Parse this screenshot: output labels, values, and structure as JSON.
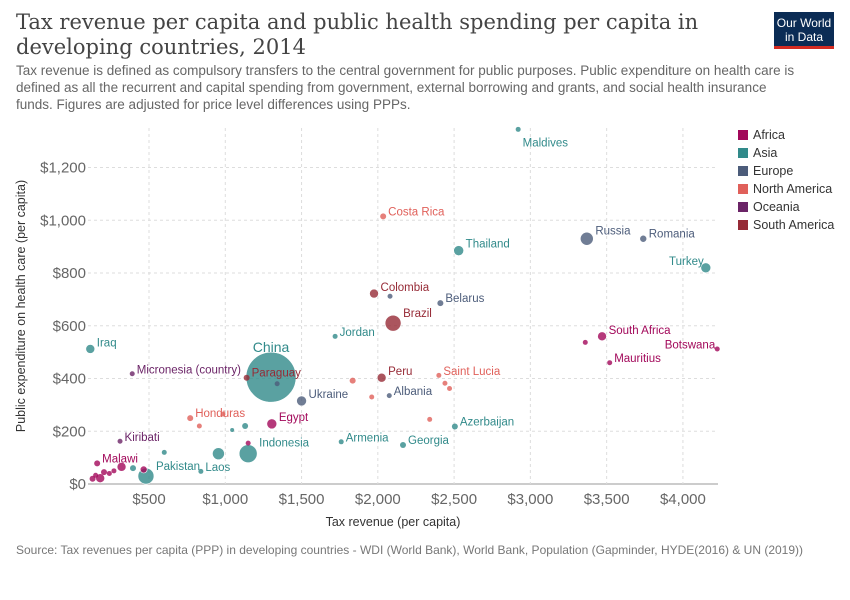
{
  "header": {
    "title": "Tax revenue per capita and public health spending per capita in developing countries, 2014",
    "subtitle": "Tax revenue is defined as compulsory transfers to the central government for public purposes. Public expenditure on health care is defined as all the recurrent and capital spending from government, external borrowing and grants, and social health insurance funds. Figures are adjusted for price level differences using PPPs.",
    "logo_line1": "Our World",
    "logo_line2": "in Data"
  },
  "footer": {
    "source": "Source: Tax revenues per capita (PPP) in developing countries - WDI (World Bank), World Bank, Population (Gapminder, HYDE(2016) & UN (2019))"
  },
  "chart_data": {
    "type": "scatter",
    "xlabel": "Tax revenue (per capita)",
    "ylabel": "Public expenditure on health care (per capita)",
    "xlim": [
      100,
      4230
    ],
    "ylim": [
      0,
      1350
    ],
    "x_ticks": [
      500,
      1000,
      1500,
      2000,
      2500,
      3000,
      3500,
      4000
    ],
    "x_tick_labels": [
      "$500",
      "$1,000",
      "$1,500",
      "$2,000",
      "$2,500",
      "$3,000",
      "$3,500",
      "$4,000"
    ],
    "y_ticks": [
      0,
      200,
      400,
      600,
      800,
      1000,
      1200
    ],
    "y_tick_labels": [
      "$0",
      "$200",
      "$400",
      "$600",
      "$800",
      "$1,000",
      "$1,200"
    ],
    "grid": true,
    "legend_position": "right",
    "legend": [
      {
        "name": "Africa",
        "color": "#a2085a"
      },
      {
        "name": "Asia",
        "color": "#318a8a"
      },
      {
        "name": "Europe",
        "color": "#4c5c7a"
      },
      {
        "name": "North America",
        "color": "#e0605a"
      },
      {
        "name": "Oceania",
        "color": "#6b2467"
      },
      {
        "name": "South America",
        "color": "#962a36"
      }
    ],
    "points": [
      {
        "label": "Maldives",
        "region": "Asia",
        "x": 2920,
        "y": 1345,
        "size": 2.5
      },
      {
        "label": "Costa Rica",
        "region": "North America",
        "x": 2035,
        "y": 1015,
        "size": 3
      },
      {
        "label": "Thailand",
        "region": "Asia",
        "x": 2530,
        "y": 885,
        "size": 5
      },
      {
        "label": "Russia",
        "region": "Europe",
        "x": 3370,
        "y": 930,
        "size": 6.5
      },
      {
        "label": "Romania",
        "region": "Europe",
        "x": 3740,
        "y": 930,
        "size": 3.5
      },
      {
        "label": "Turkey",
        "region": "Asia",
        "x": 4150,
        "y": 820,
        "size": 5
      },
      {
        "label": "Colombia",
        "region": "South America",
        "x": 1975,
        "y": 722,
        "size": 4.5
      },
      {
        "label": "",
        "region": "Europe",
        "x": 2080,
        "y": 712,
        "size": 2.5
      },
      {
        "label": "Belarus",
        "region": "Europe",
        "x": 2410,
        "y": 686,
        "size": 3
      },
      {
        "label": "Brazil",
        "region": "South America",
        "x": 2100,
        "y": 610,
        "size": 8
      },
      {
        "label": "Jordan",
        "region": "Asia",
        "x": 1720,
        "y": 560,
        "size": 2.5
      },
      {
        "label": "South Africa",
        "region": "Africa",
        "x": 3470,
        "y": 560,
        "size": 4.5
      },
      {
        "label": "",
        "region": "Africa",
        "x": 3360,
        "y": 537,
        "size": 2.5
      },
      {
        "label": "Iraq",
        "region": "Asia",
        "x": 115,
        "y": 512,
        "size": 4.5
      },
      {
        "label": "Botswana",
        "region": "Africa",
        "x": 4225,
        "y": 512,
        "size": 2.5
      },
      {
        "label": "Mauritius",
        "region": "Africa",
        "x": 3520,
        "y": 460,
        "size": 2.5
      },
      {
        "label": "Micronesia (country)",
        "region": "Oceania",
        "x": 390,
        "y": 418,
        "size": 2.5
      },
      {
        "label": "China",
        "region": "Asia",
        "x": 1300,
        "y": 405,
        "size": 25
      },
      {
        "label": "Paraguay",
        "region": "South America",
        "x": 1140,
        "y": 403,
        "size": 3
      },
      {
        "label": "",
        "region": "Europe",
        "x": 1340,
        "y": 380,
        "size": 2.5
      },
      {
        "label": "Peru",
        "region": "South America",
        "x": 2025,
        "y": 403,
        "size": 4.5
      },
      {
        "label": "",
        "region": "North America",
        "x": 1835,
        "y": 392,
        "size": 3
      },
      {
        "label": "Saint Lucia",
        "region": "North America",
        "x": 2400,
        "y": 412,
        "size": 2.5
      },
      {
        "label": "",
        "region": "North America",
        "x": 2440,
        "y": 382,
        "size": 2.5
      },
      {
        "label": "",
        "region": "North America",
        "x": 2470,
        "y": 362,
        "size": 2.5
      },
      {
        "label": "Albania",
        "region": "Europe",
        "x": 2075,
        "y": 335,
        "size": 2.5
      },
      {
        "label": "",
        "region": "North America",
        "x": 1960,
        "y": 330,
        "size": 2.5
      },
      {
        "label": "Ukraine",
        "region": "Europe",
        "x": 1500,
        "y": 315,
        "size": 5
      },
      {
        "label": "Honduras",
        "region": "North America",
        "x": 770,
        "y": 250,
        "size": 3
      },
      {
        "label": "",
        "region": "North America",
        "x": 985,
        "y": 265,
        "size": 2.5
      },
      {
        "label": "",
        "region": "North America",
        "x": 2340,
        "y": 245,
        "size": 2.5
      },
      {
        "label": "Egypt",
        "region": "Africa",
        "x": 1305,
        "y": 228,
        "size": 5
      },
      {
        "label": "",
        "region": "North America",
        "x": 830,
        "y": 220,
        "size": 2.5
      },
      {
        "label": "",
        "region": "Asia",
        "x": 1130,
        "y": 220,
        "size": 3
      },
      {
        "label": "",
        "region": "Asia",
        "x": 1045,
        "y": 205,
        "size": 2
      },
      {
        "label": "Azerbaijan",
        "region": "Asia",
        "x": 2505,
        "y": 218,
        "size": 3
      },
      {
        "label": "Kiribati",
        "region": "Oceania",
        "x": 310,
        "y": 162,
        "size": 2.5
      },
      {
        "label": "Armenia",
        "region": "Asia",
        "x": 1760,
        "y": 160,
        "size": 2.5
      },
      {
        "label": "Georgia",
        "region": "Asia",
        "x": 2165,
        "y": 148,
        "size": 3
      },
      {
        "label": "Indonesia",
        "region": "Asia",
        "x": 1150,
        "y": 115,
        "size": 9
      },
      {
        "label": "",
        "region": "Africa",
        "x": 1150,
        "y": 155,
        "size": 2.5
      },
      {
        "label": "",
        "region": "Asia",
        "x": 955,
        "y": 115,
        "size": 6
      },
      {
        "label": "",
        "region": "Asia",
        "x": 600,
        "y": 120,
        "size": 2.5
      },
      {
        "label": "Laos",
        "region": "Asia",
        "x": 840,
        "y": 48,
        "size": 2.5
      },
      {
        "label": "Pakistan",
        "region": "Asia",
        "x": 480,
        "y": 30,
        "size": 8
      },
      {
        "label": "",
        "region": "Asia",
        "x": 395,
        "y": 60,
        "size": 3
      },
      {
        "label": "Malawi",
        "region": "Africa",
        "x": 160,
        "y": 78,
        "size": 3
      },
      {
        "label": "",
        "region": "Africa",
        "x": 320,
        "y": 65,
        "size": 4.5
      },
      {
        "label": "",
        "region": "Africa",
        "x": 465,
        "y": 55,
        "size": 3.5
      },
      {
        "label": "",
        "region": "Africa",
        "x": 130,
        "y": 20,
        "size": 3
      },
      {
        "label": "",
        "region": "Africa",
        "x": 150,
        "y": 33,
        "size": 2.5
      },
      {
        "label": "",
        "region": "Africa",
        "x": 180,
        "y": 22,
        "size": 4.5
      },
      {
        "label": "",
        "region": "Africa",
        "x": 205,
        "y": 45,
        "size": 3
      },
      {
        "label": "",
        "region": "Africa",
        "x": 240,
        "y": 40,
        "size": 2.5
      },
      {
        "label": "",
        "region": "Africa",
        "x": 270,
        "y": 50,
        "size": 2.5
      }
    ]
  }
}
